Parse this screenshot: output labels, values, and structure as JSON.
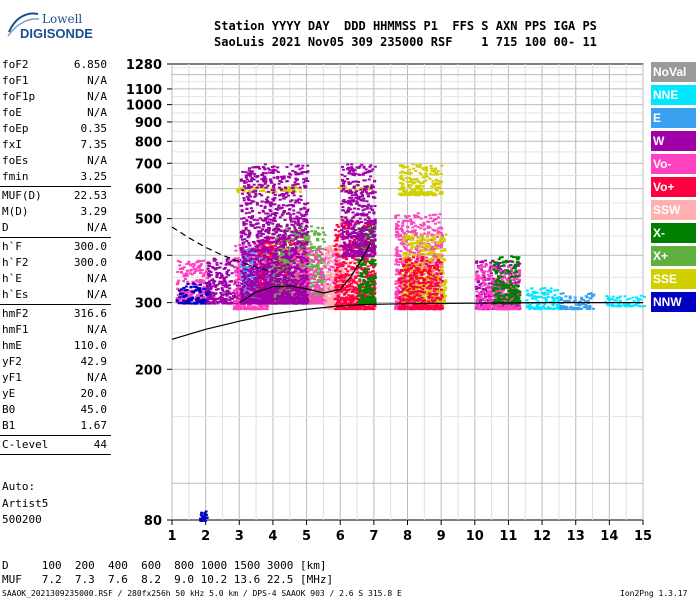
{
  "logo": {
    "line1": "Lowell",
    "line2": "DIGISONDE"
  },
  "header": {
    "line1": "Station YYYY DAY  DDD HHMMSS P1  FFS S AXN PPS IGA PS",
    "line2": "SaoLuis 2021 Nov05 309 235000 RSF    1 715 100 00- 11"
  },
  "params": [
    {
      "name": "foF2",
      "value": "6.850",
      "sep_after": false
    },
    {
      "name": "foF1",
      "value": "N/A",
      "sep_after": false
    },
    {
      "name": "foF1p",
      "value": "N/A",
      "sep_after": false
    },
    {
      "name": "foE",
      "value": "N/A",
      "sep_after": false
    },
    {
      "name": "foEp",
      "value": "0.35",
      "sep_after": false
    },
    {
      "name": "fxI",
      "value": "7.35",
      "sep_after": false
    },
    {
      "name": "foEs",
      "value": "N/A",
      "sep_after": false
    },
    {
      "name": "fmin",
      "value": "3.25",
      "sep_after": true
    },
    {
      "name": "MUF(D)",
      "value": "22.53",
      "sep_after": false
    },
    {
      "name": "M(D)",
      "value": "3.29",
      "sep_after": false
    },
    {
      "name": "D",
      "value": "N/A",
      "sep_after": true
    },
    {
      "name": "h`F",
      "value": "300.0",
      "sep_after": false
    },
    {
      "name": "h`F2",
      "value": "300.0",
      "sep_after": false
    },
    {
      "name": "h`E",
      "value": "N/A",
      "sep_after": false
    },
    {
      "name": "h`Es",
      "value": "N/A",
      "sep_after": true
    },
    {
      "name": "hmF2",
      "value": "316.6",
      "sep_after": false
    },
    {
      "name": "hmF1",
      "value": "N/A",
      "sep_after": false
    },
    {
      "name": "hmE",
      "value": "110.0",
      "sep_after": false
    },
    {
      "name": "yF2",
      "value": "42.9",
      "sep_after": false
    },
    {
      "name": "yF1",
      "value": "N/A",
      "sep_after": false
    },
    {
      "name": "yE",
      "value": "20.0",
      "sep_after": false
    },
    {
      "name": "B0",
      "value": "45.0",
      "sep_after": false
    },
    {
      "name": "B1",
      "value": "1.67",
      "sep_after": true
    },
    {
      "name": "C-level",
      "value": "44",
      "sep_after": true
    }
  ],
  "autoscaling": {
    "label": "Auto:",
    "artist": "Artist5",
    "version": "500200"
  },
  "legend": [
    {
      "label": "NoVal",
      "color": "#9a9a9a"
    },
    {
      "label": "NNE",
      "color": "#00e8ff"
    },
    {
      "label": "E",
      "color": "#3aa0f0"
    },
    {
      "label": "W",
      "color": "#a000a8"
    },
    {
      "label": "Vo-",
      "color": "#ff40c0"
    },
    {
      "label": "Vo+",
      "color": "#ff0040"
    },
    {
      "label": "SSW",
      "color": "#ffb0b0"
    },
    {
      "label": "X-",
      "color": "#008000"
    },
    {
      "label": "X+",
      "color": "#60b040"
    },
    {
      "label": "SSE",
      "color": "#d0d000"
    },
    {
      "label": "NNW",
      "color": "#0000c0"
    }
  ],
  "footer": {
    "d_row": "D     100  200  400  600  800 1000 1500 3000 [km]",
    "muf_row": "MUF   7.2  7.3  7.6  8.2  9.0 10.2 13.6 22.5 [MHz]",
    "file_info": "SAAOK_2021309235000.RSF / 280fx256h 50 kHz 5.0 km / DPS-4 SAAOK 903 / 2.6 S 315.8 E",
    "version": "Ion2Png 1.3.17"
  },
  "chart_data": {
    "type": "scatter",
    "title": "",
    "xlabel": "",
    "ylabel": "",
    "xlim": [
      1,
      15
    ],
    "ylim": [
      80,
      1280
    ],
    "y_scale": "log",
    "x_ticks": [
      1,
      2,
      3,
      4,
      5,
      6,
      7,
      8,
      9,
      10,
      11,
      12,
      13,
      14,
      15
    ],
    "x_tick_labels": [
      "1",
      "2",
      "3",
      "4",
      "5",
      "6",
      "7",
      "8",
      "9",
      "10",
      "11",
      "12",
      "13",
      "14",
      "15"
    ],
    "y_ticks": [
      80,
      200,
      300,
      400,
      500,
      600,
      700,
      800,
      900,
      1000,
      1100,
      1280
    ],
    "y_tick_labels": [
      "80",
      "200",
      "300",
      "400",
      "500",
      "600",
      "700",
      "800",
      "900",
      "1000",
      "1100",
      "1280"
    ],
    "grid": true,
    "profile_curve": [
      [
        1.0,
        240
      ],
      [
        2.0,
        255
      ],
      [
        3.0,
        268
      ],
      [
        4.0,
        280
      ],
      [
        5.0,
        288
      ],
      [
        6.0,
        294
      ],
      [
        6.5,
        296
      ],
      [
        7.0,
        297
      ],
      [
        8.0,
        298
      ],
      [
        10.0,
        299
      ],
      [
        12.0,
        300
      ],
      [
        15.0,
        300
      ]
    ],
    "trace_curve": [
      [
        3.0,
        300
      ],
      [
        3.5,
        320
      ],
      [
        4.0,
        330
      ],
      [
        4.5,
        332
      ],
      [
        5.0,
        326
      ],
      [
        5.5,
        318
      ],
      [
        6.0,
        325
      ],
      [
        6.3,
        350
      ],
      [
        6.6,
        385
      ],
      [
        6.9,
        430
      ]
    ],
    "dashed_curve": [
      [
        1.0,
        475
      ],
      [
        1.5,
        445
      ],
      [
        2.0,
        420
      ],
      [
        2.5,
        400
      ],
      [
        3.0,
        385
      ],
      [
        3.5,
        372
      ],
      [
        4.0,
        362
      ]
    ],
    "echo_clusters": [
      {
        "x": [
          1.1,
          2.1
        ],
        "y": [
          300,
          390
        ],
        "color": "Vo-"
      },
      {
        "x": [
          1.1,
          2.1
        ],
        "y": [
          300,
          340
        ],
        "color": "NNW"
      },
      {
        "x": [
          2.0,
          3.0
        ],
        "y": [
          300,
          400
        ],
        "color": "W"
      },
      {
        "x": [
          2.8,
          3.8
        ],
        "y": [
          290,
          430
        ],
        "color": "Vo-"
      },
      {
        "x": [
          3.0,
          4.5
        ],
        "y": [
          300,
          420
        ],
        "color": "E"
      },
      {
        "x": [
          3.5,
          5.0
        ],
        "y": [
          300,
          450
        ],
        "color": "Vo+"
      },
      {
        "x": [
          4.0,
          5.5
        ],
        "y": [
          300,
          480
        ],
        "color": "X+"
      },
      {
        "x": [
          4.5,
          6.0
        ],
        "y": [
          300,
          420
        ],
        "color": "Vo-"
      },
      {
        "x": [
          5.5,
          6.5
        ],
        "y": [
          290,
          430
        ],
        "color": "SSW"
      },
      {
        "x": [
          5.8,
          7.0
        ],
        "y": [
          290,
          500
        ],
        "color": "Vo+"
      },
      {
        "x": [
          6.5,
          7.0
        ],
        "y": [
          300,
          480
        ],
        "color": "X-"
      },
      {
        "x": [
          7.6,
          9.0
        ],
        "y": [
          290,
          520
        ],
        "color": "Vo-"
      },
      {
        "x": [
          7.8,
          9.1
        ],
        "y": [
          300,
          460
        ],
        "color": "SSE"
      },
      {
        "x": [
          7.7,
          9.0
        ],
        "y": [
          290,
          400
        ],
        "color": "Vo+"
      },
      {
        "x": [
          10.0,
          11.3
        ],
        "y": [
          290,
          390
        ],
        "color": "W"
      },
      {
        "x": [
          10.0,
          11.3
        ],
        "y": [
          290,
          380
        ],
        "color": "Vo-"
      },
      {
        "x": [
          10.5,
          11.3
        ],
        "y": [
          300,
          400
        ],
        "color": "X-"
      },
      {
        "x": [
          11.5,
          12.5
        ],
        "y": [
          290,
          330
        ],
        "color": "NNE"
      },
      {
        "x": [
          12.5,
          13.5
        ],
        "y": [
          290,
          320
        ],
        "color": "E"
      },
      {
        "x": [
          13.8,
          15.0
        ],
        "y": [
          295,
          315
        ],
        "color": "NNE"
      },
      {
        "x": [
          2.9,
          4.8
        ],
        "y": [
          590,
          610
        ],
        "color": "SSE"
      },
      {
        "x": [
          5.9,
          6.9
        ],
        "y": [
          600,
          615
        ],
        "color": "SSE"
      },
      {
        "x": [
          7.7,
          9.0
        ],
        "y": [
          580,
          700
        ],
        "color": "SSE"
      },
      {
        "x": [
          3.0,
          5.0
        ],
        "y": [
          300,
          700
        ],
        "color": "W"
      },
      {
        "x": [
          6.0,
          7.0
        ],
        "y": [
          400,
          700
        ],
        "color": "W"
      },
      {
        "x": [
          1.8,
          2.0
        ],
        "y": [
          80,
          85
        ],
        "color": "NNW"
      }
    ]
  }
}
